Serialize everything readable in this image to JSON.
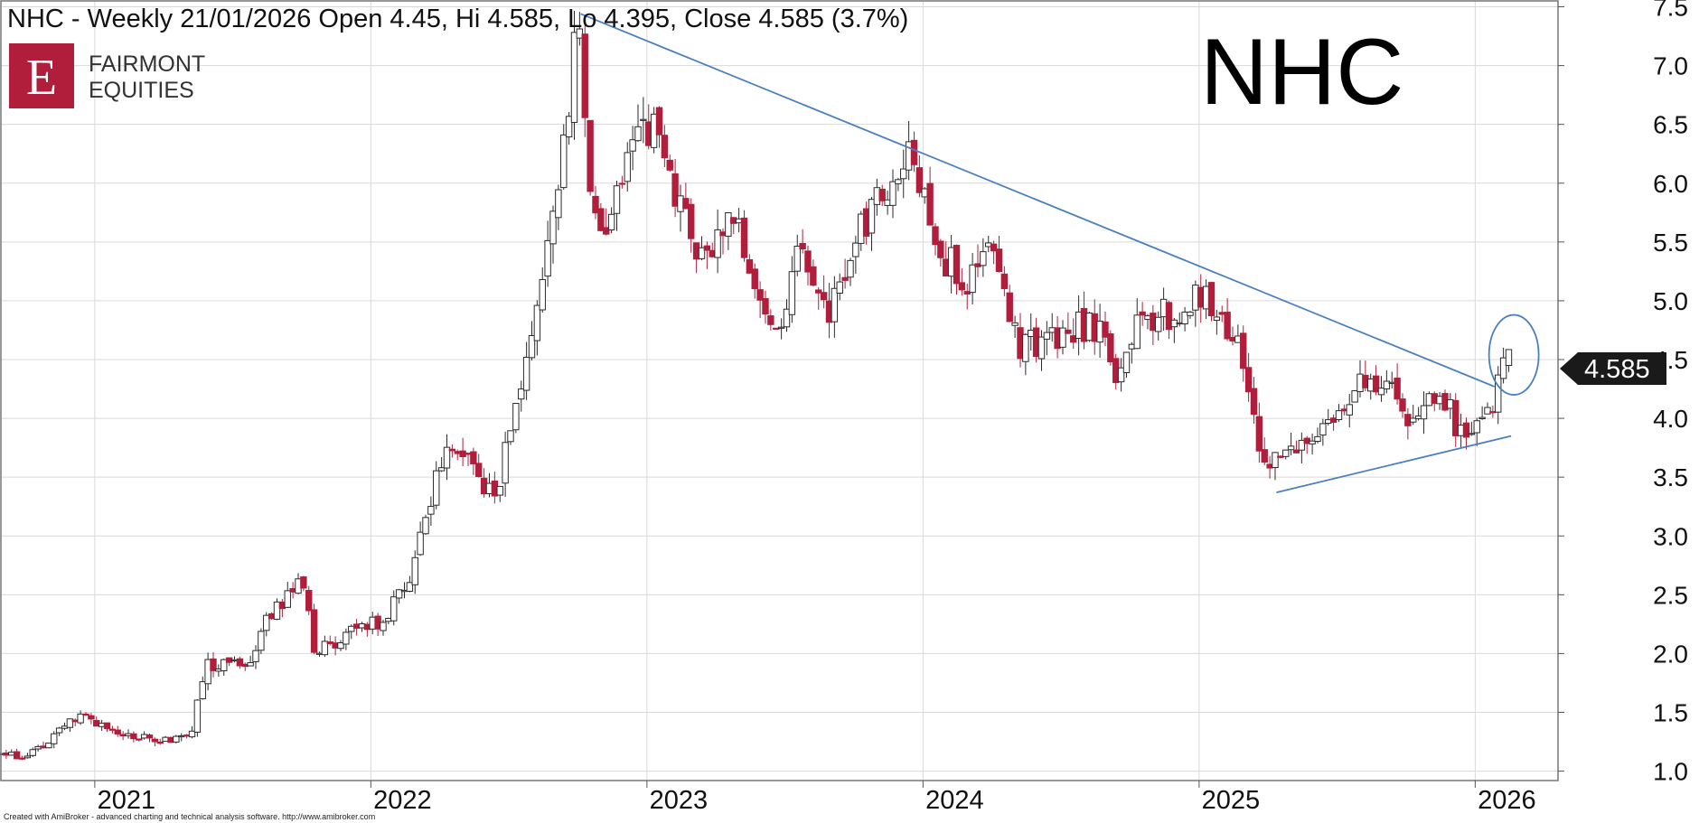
{
  "header": {
    "summary": "NHC - Weekly 21/01/2026 Open 4.45, Hi 4.585, Lo 4.395, Close 4.585 (3.7%)"
  },
  "logo": {
    "letter": "E",
    "line1": "FAIRMONT",
    "line2": "EQUITIES",
    "brand_color": "#b01e3c"
  },
  "watermark_symbol": "NHC",
  "last_price_label": "4.585",
  "footer_credit": "Created with AmiBroker - advanced charting and technical analysis software. http://www.amibroker.com",
  "colors": {
    "up_candle_fill": "#ffffff",
    "down_candle_fill": "#b01e3c",
    "wick": "#2a2a2a",
    "trendline": "#4a7fc0",
    "grid": "#d9d9d9",
    "price_label_bg": "#1a1a1a"
  },
  "chart_data": {
    "type": "candlestick",
    "title": "NHC - Weekly 21/01/2026 Open 4.45, Hi 4.585, Lo 4.395, Close 4.585 (3.7%)",
    "timeframe": "Weekly",
    "last_bar": {
      "date": "21/01/2026",
      "open": 4.45,
      "high": 4.585,
      "low": 4.395,
      "close": 4.585,
      "change_pct": 3.7
    },
    "ylim": [
      0.92,
      7.55
    ],
    "y_ticks": [
      "1.0",
      "1.5",
      "2.0",
      "2.5",
      "3.0",
      "3.5",
      "4.0",
      "4.5",
      "5.0",
      "5.5",
      "6.0",
      "6.5",
      "7.0",
      "7.5"
    ],
    "x_ticks": [
      "2021",
      "2022",
      "2023",
      "2024",
      "2025",
      "2026"
    ],
    "x_range": [
      2020.66,
      2026.3
    ],
    "grid": true,
    "close_path_anchors": [
      [
        2020.66,
        1.15
      ],
      [
        2020.75,
        1.1
      ],
      [
        2020.85,
        1.3
      ],
      [
        2020.95,
        1.5
      ],
      [
        2021.05,
        1.35
      ],
      [
        2021.15,
        1.3
      ],
      [
        2021.25,
        1.25
      ],
      [
        2021.35,
        1.35
      ],
      [
        2021.4,
        1.9
      ],
      [
        2021.55,
        1.9
      ],
      [
        2021.65,
        2.4
      ],
      [
        2021.75,
        2.6
      ],
      [
        2021.8,
        2.0
      ],
      [
        2021.9,
        2.15
      ],
      [
        2022.05,
        2.3
      ],
      [
        2022.15,
        2.7
      ],
      [
        2022.25,
        3.6
      ],
      [
        2022.33,
        3.8
      ],
      [
        2022.45,
        3.3
      ],
      [
        2022.55,
        4.4
      ],
      [
        2022.65,
        5.5
      ],
      [
        2022.72,
        6.8
      ],
      [
        2022.75,
        7.3
      ],
      [
        2022.8,
        5.9
      ],
      [
        2022.85,
        5.5
      ],
      [
        2022.93,
        6.2
      ],
      [
        2023.05,
        6.6
      ],
      [
        2023.1,
        5.8
      ],
      [
        2023.2,
        5.4
      ],
      [
        2023.3,
        5.8
      ],
      [
        2023.4,
        5.0
      ],
      [
        2023.5,
        4.85
      ],
      [
        2023.55,
        5.5
      ],
      [
        2023.65,
        4.9
      ],
      [
        2023.75,
        5.5
      ],
      [
        2023.85,
        5.9
      ],
      [
        2023.95,
        6.25
      ],
      [
        2024.05,
        5.4
      ],
      [
        2024.15,
        5.2
      ],
      [
        2024.25,
        5.35
      ],
      [
        2024.35,
        4.6
      ],
      [
        2024.45,
        4.7
      ],
      [
        2024.55,
        4.8
      ],
      [
        2024.65,
        4.7
      ],
      [
        2024.7,
        4.2
      ],
      [
        2024.78,
        4.9
      ],
      [
        2024.9,
        4.85
      ],
      [
        2025.0,
        5.0
      ],
      [
        2025.08,
        4.95
      ],
      [
        2025.15,
        4.5
      ],
      [
        2025.22,
        3.8
      ],
      [
        2025.28,
        3.6
      ],
      [
        2025.38,
        3.75
      ],
      [
        2025.5,
        4.1
      ],
      [
        2025.6,
        4.4
      ],
      [
        2025.7,
        4.3
      ],
      [
        2025.78,
        3.95
      ],
      [
        2025.88,
        4.2
      ],
      [
        2025.95,
        3.85
      ],
      [
        2026.05,
        4.0
      ],
      [
        2026.1,
        4.45
      ],
      [
        2026.12,
        4.585
      ]
    ],
    "trendlines": [
      {
        "from": [
          2022.76,
          7.44
        ],
        "to": [
          2026.07,
          4.27
        ]
      },
      {
        "from": [
          2025.28,
          3.37
        ],
        "to": [
          2026.13,
          3.85
        ]
      }
    ],
    "highlight_ellipse": {
      "center": [
        2026.14,
        4.54
      ],
      "rx_years": 0.09,
      "ry_price": 0.34
    }
  }
}
